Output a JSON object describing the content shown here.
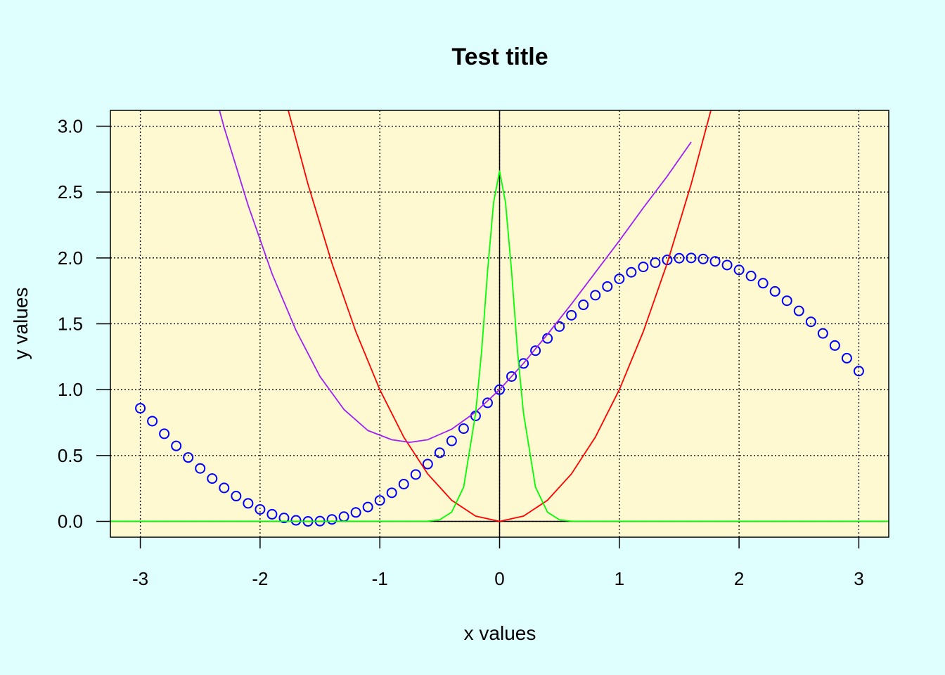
{
  "chart_data": {
    "type": "line",
    "title": "Test title",
    "xlabel": "x values",
    "ylabel": "y values",
    "xlim": [
      -3.25,
      3.25
    ],
    "ylim": [
      -0.12,
      3.12
    ],
    "x_ticks": [
      -3,
      -2,
      -1,
      0,
      1,
      2,
      3
    ],
    "x_tick_labels": [
      "-3",
      "-2",
      "-1",
      "0",
      "1",
      "2",
      "3"
    ],
    "y_ticks": [
      0,
      0.5,
      1,
      1.5,
      2,
      2.5,
      3
    ],
    "y_tick_labels": [
      "0.0",
      "0.5",
      "1.0",
      "1.5",
      "2.0",
      "2.5",
      "3.0"
    ],
    "grid": true,
    "grid_style": "dotted",
    "plot_background": "#FFF9D2",
    "page_background": "#DFFFFF",
    "reference_lines": {
      "x": 0,
      "y": 0,
      "color": "#000000"
    },
    "series": [
      {
        "type": "scatter",
        "marker": "open-circle",
        "color": "#0000FF",
        "x": [
          -3.0,
          -2.9,
          -2.8,
          -2.7,
          -2.6,
          -2.5,
          -2.4,
          -2.3,
          -2.2,
          -2.1,
          -2.0,
          -1.9,
          -1.8,
          -1.7,
          -1.6,
          -1.5,
          -1.4,
          -1.3,
          -1.2,
          -1.1,
          -1.0,
          -0.9,
          -0.8,
          -0.7,
          -0.6,
          -0.5,
          -0.4,
          -0.3,
          -0.2,
          -0.1,
          0.0,
          0.1,
          0.2,
          0.3,
          0.4,
          0.5,
          0.6,
          0.7,
          0.8,
          0.9,
          1.0,
          1.1,
          1.2,
          1.3,
          1.4,
          1.5,
          1.6,
          1.7,
          1.8,
          1.9,
          2.0,
          2.1,
          2.2,
          2.3,
          2.4,
          2.5,
          2.6,
          2.7,
          2.8,
          2.9,
          3.0
        ],
        "y": [
          0.859,
          0.761,
          0.665,
          0.573,
          0.485,
          0.402,
          0.325,
          0.254,
          0.192,
          0.137,
          0.091,
          0.054,
          0.026,
          0.008,
          0.0,
          0.002,
          0.015,
          0.036,
          0.068,
          0.109,
          0.159,
          0.217,
          0.283,
          0.356,
          0.435,
          0.521,
          0.611,
          0.704,
          0.801,
          0.9,
          1.0,
          1.1,
          1.199,
          1.296,
          1.389,
          1.479,
          1.565,
          1.644,
          1.717,
          1.783,
          1.841,
          1.891,
          1.932,
          1.964,
          1.985,
          1.998,
          2.0,
          1.992,
          1.974,
          1.946,
          1.909,
          1.863,
          1.808,
          1.746,
          1.675,
          1.598,
          1.515,
          1.427,
          1.335,
          1.239,
          1.141
        ]
      },
      {
        "type": "line",
        "color": "#FF0000",
        "x": [
          -1.8,
          -1.6,
          -1.4,
          -1.2,
          -1.0,
          -0.8,
          -0.6,
          -0.4,
          -0.2,
          0.0,
          0.2,
          0.4,
          0.6,
          0.8,
          1.0,
          1.2,
          1.4,
          1.6,
          1.8
        ],
        "y": [
          3.24,
          2.56,
          1.96,
          1.44,
          1.0,
          0.64,
          0.36,
          0.16,
          0.04,
          0.0,
          0.04,
          0.16,
          0.36,
          0.64,
          1.0,
          1.44,
          1.96,
          2.56,
          3.24
        ]
      },
      {
        "type": "line",
        "color": "#A020F0",
        "x": [
          -2.5,
          -2.3,
          -2.1,
          -1.9,
          -1.7,
          -1.5,
          -1.3,
          -1.1,
          -0.9,
          -0.75,
          -0.6,
          -0.4,
          -0.2,
          0.0,
          0.2,
          0.4,
          0.6,
          0.8,
          1.0,
          1.2,
          1.4,
          1.6
        ],
        "y": [
          3.66,
          2.99,
          2.4,
          1.88,
          1.45,
          1.1,
          0.85,
          0.69,
          0.62,
          0.6,
          0.62,
          0.7,
          0.83,
          1.0,
          1.2,
          1.42,
          1.65,
          1.89,
          2.13,
          2.38,
          2.62,
          2.88
        ]
      },
      {
        "type": "line",
        "color": "#00FF00",
        "x": [
          -3.25,
          -0.7,
          -0.6,
          -0.5,
          -0.4,
          -0.3,
          -0.2,
          -0.15,
          -0.1,
          -0.05,
          0.0,
          0.05,
          0.1,
          0.15,
          0.2,
          0.3,
          0.4,
          0.5,
          0.6,
          0.7,
          3.25
        ],
        "y": [
          0.0,
          0.0,
          0.001,
          0.012,
          0.07,
          0.26,
          0.82,
          1.29,
          1.9,
          2.42,
          2.66,
          2.42,
          1.9,
          1.29,
          0.82,
          0.26,
          0.07,
          0.012,
          0.001,
          0.0,
          0.0
        ]
      }
    ]
  }
}
